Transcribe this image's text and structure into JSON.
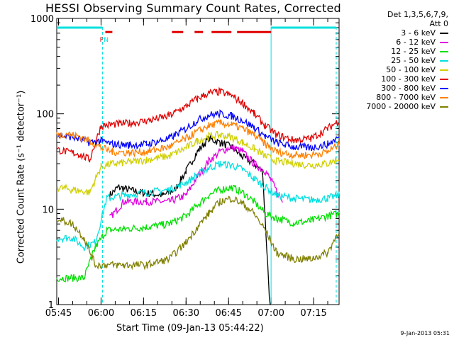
{
  "title": "HESSI Observing Summary Count Rates, Corrected",
  "footer": "9-Jan-2013 05:31",
  "legend_header": [
    "Det 1,3,5,6,7,9,",
    "Att 0"
  ],
  "chart_data": {
    "type": "line",
    "title": "HESSI Observing Summary Count Rates, Corrected",
    "xlabel": "Start Time (09-Jan-13 05:44:22)",
    "ylabel": "Corrected Count Rate (s⁻¹ detector⁻¹)",
    "yscale": "log",
    "xlim_minutes": [
      0.37,
      100
    ],
    "ylim": [
      1,
      1000
    ],
    "x_tick_labels": [
      "05:45",
      "06:00",
      "06:15",
      "06:30",
      "06:45",
      "07:00",
      "07:15"
    ],
    "x_tick_minutes": [
      1.0,
      16.0,
      31.0,
      46.0,
      61.0,
      76.0,
      91.0
    ],
    "y_tick_labels": [
      "1",
      "10",
      "100",
      "1000"
    ],
    "y_tick_values": [
      1,
      10,
      100,
      1000
    ],
    "grid": false,
    "legend_position": "right",
    "series": [
      {
        "name": "3 - 6 keV",
        "color": "#000000",
        "x": [
          0.37,
          14,
          19,
          22,
          30,
          38,
          42,
          46,
          50,
          54,
          58,
          62,
          66,
          70,
          73,
          76,
          80,
          90,
          100
        ],
        "y": [
          null,
          null,
          14,
          17,
          15,
          14,
          16,
          25,
          40,
          55,
          50,
          45,
          35,
          30,
          25,
          0.6,
          null,
          null,
          null
        ]
      },
      {
        "name": "6 - 12 keV",
        "color": "#e000e0",
        "x": [
          0.37,
          14,
          19,
          24,
          32,
          40,
          46,
          50,
          54,
          58,
          62,
          66,
          70,
          74,
          76,
          80,
          84
        ],
        "y": [
          null,
          null,
          8,
          12,
          12,
          12,
          14,
          22,
          32,
          40,
          45,
          40,
          30,
          25,
          20,
          12,
          null
        ]
      },
      {
        "name": "12 - 25 keV",
        "color": "#00e000",
        "x": [
          0.37,
          10,
          14,
          18,
          24,
          32,
          40,
          46,
          50,
          54,
          58,
          62,
          66,
          70,
          74,
          78,
          84,
          90,
          96,
          100
        ],
        "y": [
          1.9,
          1.9,
          4,
          6,
          6.2,
          6.5,
          7,
          8.5,
          11,
          14,
          16,
          17,
          15,
          12,
          9,
          8,
          7.2,
          7.5,
          8.5,
          9
        ]
      },
      {
        "name": "25 - 50 keV",
        "color": "#00e0e0",
        "x": [
          0.37,
          6,
          10,
          14,
          18,
          24,
          32,
          40,
          46,
          50,
          54,
          58,
          62,
          66,
          70,
          74,
          78,
          84,
          90,
          96,
          100
        ],
        "y": [
          5,
          5,
          4,
          4.5,
          13,
          14,
          15,
          16,
          19,
          23,
          27,
          30,
          29,
          26,
          21,
          17,
          14,
          13,
          12.5,
          13,
          14
        ]
      },
      {
        "name": "50 - 100 keV",
        "color": "#d0d000",
        "x": [
          0.37,
          6,
          12,
          16,
          20,
          26,
          32,
          40,
          46,
          50,
          54,
          58,
          62,
          66,
          70,
          74,
          78,
          84,
          90,
          96,
          100
        ],
        "y": [
          17,
          16,
          15,
          28,
          30,
          31,
          33,
          36,
          44,
          52,
          58,
          60,
          57,
          50,
          43,
          36,
          32,
          30,
          29,
          30,
          34
        ]
      },
      {
        "name": "100 - 300 keV",
        "color": "#e00000",
        "x": [
          0.37,
          4,
          8,
          12,
          16,
          20,
          26,
          32,
          40,
          46,
          50,
          54,
          58,
          62,
          66,
          70,
          74,
          78,
          84,
          90,
          96,
          100
        ],
        "y": [
          42,
          40,
          38,
          33,
          75,
          77,
          80,
          84,
          95,
          120,
          145,
          165,
          170,
          155,
          130,
          100,
          75,
          60,
          53,
          55,
          70,
          85
        ]
      },
      {
        "name": "300 - 800 keV",
        "color": "#0000ff",
        "x": [
          0.37,
          6,
          12,
          16,
          20,
          26,
          32,
          40,
          46,
          50,
          54,
          58,
          62,
          66,
          70,
          74,
          78,
          84,
          90,
          96,
          100
        ],
        "y": [
          60,
          57,
          50,
          52,
          48,
          47,
          48,
          55,
          70,
          85,
          97,
          100,
          95,
          85,
          72,
          58,
          50,
          45,
          44,
          48,
          57
        ]
      },
      {
        "name": "800 - 7000 keV",
        "color": "#ff8000",
        "x": [
          0.37,
          4,
          8,
          12,
          16,
          20,
          26,
          32,
          40,
          46,
          50,
          54,
          58,
          62,
          66,
          70,
          74,
          78,
          84,
          90,
          96,
          100
        ],
        "y": [
          60,
          62,
          58,
          52,
          44,
          40,
          39,
          40,
          45,
          55,
          65,
          75,
          80,
          77,
          70,
          60,
          48,
          40,
          37,
          37,
          40,
          48
        ]
      },
      {
        "name": "7000 - 20000 keV",
        "color": "#808000",
        "x": [
          0.37,
          6,
          10,
          14,
          18,
          24,
          32,
          40,
          46,
          50,
          54,
          58,
          62,
          66,
          70,
          74,
          78,
          84,
          90,
          96,
          100
        ],
        "y": [
          8,
          7,
          5,
          2.6,
          2.6,
          2.6,
          2.6,
          3,
          4.5,
          6.5,
          9,
          12,
          13,
          11.5,
          9,
          6,
          3.5,
          3,
          3,
          3.5,
          6
        ]
      }
    ],
    "flag_bars": [
      {
        "color": "#00e0e0",
        "y": 800,
        "x": [
          0.37,
          16.5
        ]
      },
      {
        "color": "#00e0e0",
        "y": 800,
        "x": [
          76,
          99
        ]
      },
      {
        "color": "#e00000",
        "y": 720,
        "x": [
          17.5,
          20
        ]
      },
      {
        "color": "#e00000",
        "y": 720,
        "x": [
          41,
          45
        ]
      },
      {
        "color": "#e00000",
        "y": 720,
        "x": [
          49,
          52
        ]
      },
      {
        "color": "#e00000",
        "y": 720,
        "x": [
          55,
          62
        ]
      },
      {
        "color": "#e00000",
        "y": 720,
        "x": [
          64,
          76
        ]
      }
    ],
    "flag_labels": [
      {
        "text": "F",
        "color": "#e00000",
        "x": 16.2
      },
      {
        "text": "N",
        "color": "#00e0e0",
        "x": 17.8
      }
    ],
    "vertical_markers": [
      {
        "color": "#00e0e0",
        "x": 16.5,
        "style": "dashed"
      },
      {
        "color": "#00e0e0",
        "x": 76,
        "style": "solid"
      },
      {
        "color": "#00e0e0",
        "x": 99,
        "style": "dashed"
      }
    ]
  }
}
